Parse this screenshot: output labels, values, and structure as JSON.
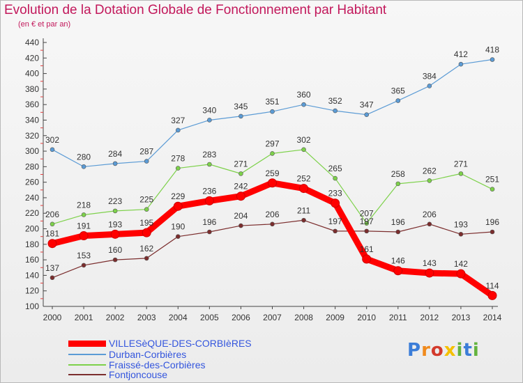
{
  "header": {
    "title": "Evolution de la Dotation Globale de Fonctionnement par Habitant",
    "subtitle": "(en € et par an)"
  },
  "logo": {
    "text": "Proxiti",
    "colors": [
      "#3b7dd8",
      "#f08a1c",
      "#d33a2c",
      "#f5c000",
      "#63b33e",
      "#3b7dd8",
      "#63b33e"
    ]
  },
  "chart_data": {
    "type": "line",
    "title": "Evolution de la Dotation Globale de Fonctionnement par Habitant",
    "subtitle": "(en € et par an)",
    "x": [
      "2000",
      "2001",
      "2002",
      "2003",
      "2004",
      "2005",
      "2006",
      "2007",
      "2008",
      "2009",
      "2010",
      "2011",
      "2012",
      "2013",
      "2014"
    ],
    "ylim": [
      100,
      440
    ],
    "yticks": [
      100,
      120,
      140,
      160,
      180,
      200,
      220,
      240,
      260,
      280,
      300,
      320,
      340,
      360,
      380,
      400,
      420,
      440
    ],
    "grid": false,
    "legend_position": "bottom-left",
    "series": [
      {
        "name": "VILLESèQUE-DES-CORBIèRES",
        "color": "#ff0000",
        "values": [
          181,
          191,
          193,
          195,
          229,
          236,
          242,
          259,
          252,
          233,
          161,
          146,
          143,
          142,
          114
        ]
      },
      {
        "name": "Durban-Corbières",
        "color": "#5b9bd5",
        "values": [
          302,
          280,
          284,
          287,
          327,
          340,
          345,
          351,
          360,
          352,
          347,
          365,
          384,
          412,
          418
        ]
      },
      {
        "name": "Fraissé-des-Corbières",
        "color": "#7dd14a",
        "values": [
          206,
          218,
          223,
          225,
          278,
          283,
          271,
          297,
          302,
          265,
          207,
          258,
          262,
          271,
          251
        ]
      },
      {
        "name": "Fontjoncouse",
        "color": "#7b2d2d",
        "values": [
          137,
          153,
          160,
          162,
          190,
          196,
          204,
          206,
          211,
          197,
          197,
          196,
          206,
          193,
          196
        ]
      }
    ]
  }
}
